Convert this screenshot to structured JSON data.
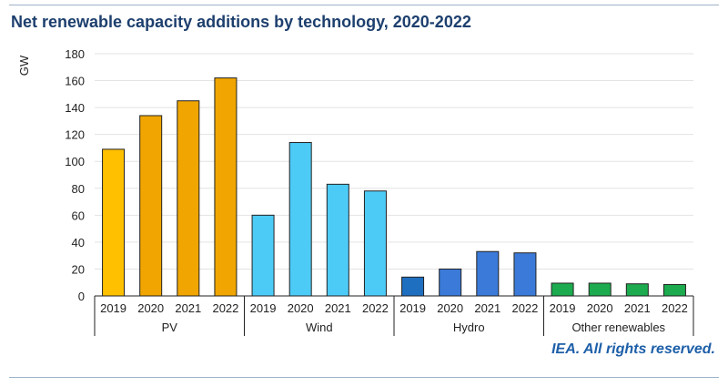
{
  "chart_data": {
    "type": "bar",
    "title": "Net renewable capacity additions by technology, 2020-2022",
    "ylabel": "GW",
    "xlabel": "",
    "ylim": [
      0,
      180
    ],
    "yticks": [
      0,
      20,
      40,
      60,
      80,
      100,
      120,
      140,
      160,
      180
    ],
    "grid": true,
    "groups": [
      {
        "name": "PV",
        "categories": [
          "2019",
          "2020",
          "2021",
          "2022"
        ],
        "values": [
          109,
          134,
          145,
          162
        ],
        "colors": [
          "#FFC000",
          "#F0A500",
          "#F0A500",
          "#F0A500"
        ]
      },
      {
        "name": "Wind",
        "categories": [
          "2019",
          "2020",
          "2021",
          "2022"
        ],
        "values": [
          60,
          114,
          83,
          78
        ],
        "colors": [
          "#4DCBF7",
          "#4DCBF7",
          "#4DCBF7",
          "#4DCBF7"
        ]
      },
      {
        "name": "Hydro",
        "categories": [
          "2019",
          "2020",
          "2021",
          "2022"
        ],
        "values": [
          14,
          20,
          33,
          32
        ],
        "colors": [
          "#1F6FC0",
          "#3B7AD8",
          "#3B7AD8",
          "#3B7AD8"
        ]
      },
      {
        "name": "Other renewables",
        "categories": [
          "2019",
          "2020",
          "2021",
          "2022"
        ],
        "values": [
          9.5,
          9.5,
          9,
          8.5
        ],
        "colors": [
          "#1CAB4E",
          "#1CAB4E",
          "#1CAB4E",
          "#1CAB4E"
        ]
      }
    ]
  },
  "footer": {
    "credit": "IEA. All rights reserved."
  }
}
